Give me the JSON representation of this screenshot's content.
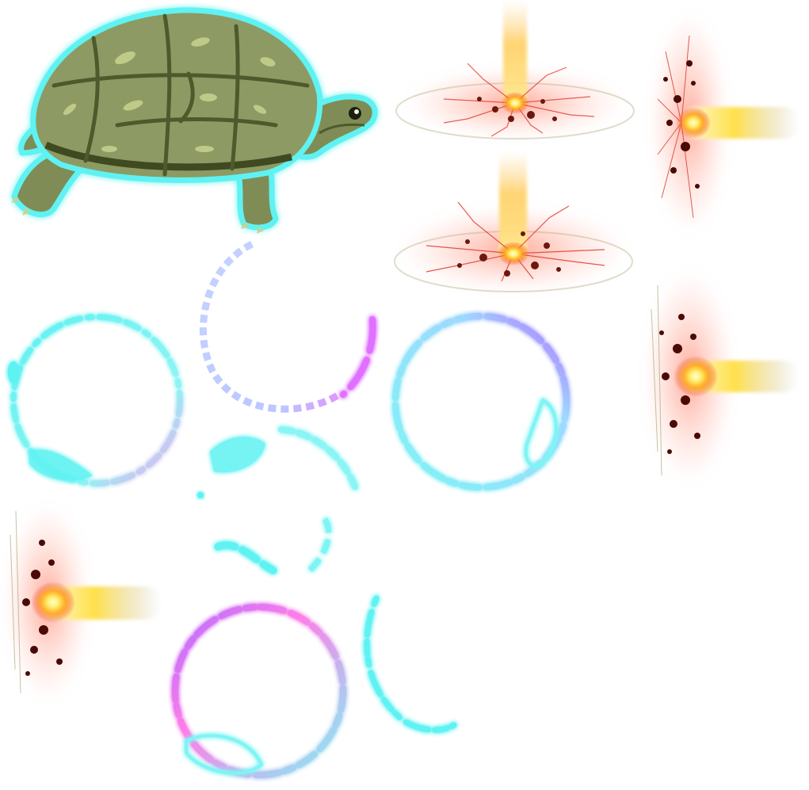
{
  "sheet": {
    "background": "#ffffff",
    "sprites": [
      {
        "name": "turtle",
        "icon": "turtle-icon",
        "colors": {
          "shell": "#8d9a64",
          "shell_dark": "#4e5a2c",
          "scute_highlight": "#c9d38f",
          "glow": "#5ff2f2"
        }
      },
      {
        "name": "explosion-upward-1",
        "icon": "explosion-icon"
      },
      {
        "name": "explosion-upward-2",
        "icon": "explosion-icon"
      },
      {
        "name": "explosion-sideways-1",
        "icon": "explosion-icon"
      },
      {
        "name": "explosion-sideways-2",
        "icon": "explosion-icon"
      },
      {
        "name": "explosion-sideways-3",
        "icon": "explosion-icon"
      },
      {
        "name": "ring-cyan-pink",
        "icon": "magic-ring-icon"
      },
      {
        "name": "ring-blue-dotted",
        "icon": "magic-ring-icon"
      },
      {
        "name": "ring-cyan-purple",
        "icon": "magic-ring-icon"
      },
      {
        "name": "ring-cyan-fragment",
        "icon": "magic-ring-icon"
      },
      {
        "name": "ring-pink-purple",
        "icon": "magic-ring-icon"
      },
      {
        "name": "ring-cyan-arc",
        "icon": "magic-ring-icon"
      }
    ],
    "palette": {
      "fire_core": "#fff6b0",
      "fire_mid": "#ffb21a",
      "fire_outer": "#e8362a",
      "ember": "#5a0c08",
      "cyan": "#5ff2f2",
      "pink": "#ff7ee8",
      "purple": "#b46cff",
      "blue": "#a9b8ff"
    }
  }
}
